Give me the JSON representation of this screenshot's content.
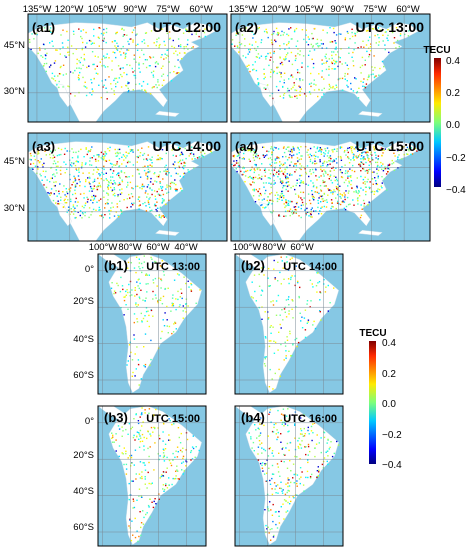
{
  "top": {
    "lon_labels": [
      "135°W",
      "120°W",
      "105°W",
      "90°W",
      "75°W",
      "60°W"
    ],
    "lat_labels": [
      "45°N",
      "30°N"
    ],
    "panels": [
      {
        "label": "(a1)",
        "time": "UTC 12:00",
        "density": 0.45
      },
      {
        "label": "(a2)",
        "time": "UTC 13:00",
        "density": 0.5
      },
      {
        "label": "(a3)",
        "time": "UTC 14:00",
        "density": 0.8
      },
      {
        "label": "(a4)",
        "time": "UTC 15:00",
        "density": 1.0
      }
    ]
  },
  "bottom": {
    "lon_labels": [
      "100°W",
      "80°W",
      "60°W",
      "40°W"
    ],
    "lat_labels": [
      "0°",
      "20°S",
      "40°S",
      "60°S"
    ],
    "panels": [
      {
        "label": "(b1)",
        "time": "UTC 13:00",
        "density": 0.55
      },
      {
        "label": "(b2)",
        "time": "UTC 14:00",
        "density": 0.45
      },
      {
        "label": "(b3)",
        "time": "UTC 15:00",
        "density": 0.7
      },
      {
        "label": "(b4)",
        "time": "UTC 16:00",
        "density": 0.75
      }
    ]
  },
  "colorbar": {
    "title": "TECU",
    "ticks": [
      "0.4",
      "0.2",
      "0.0",
      "−0.2",
      "−0.4"
    ],
    "range": [
      -0.4,
      0.4
    ]
  },
  "colors": {
    "ocean": "#86c8e4",
    "land": "#ffffff",
    "grid": "#7a8a95"
  }
}
